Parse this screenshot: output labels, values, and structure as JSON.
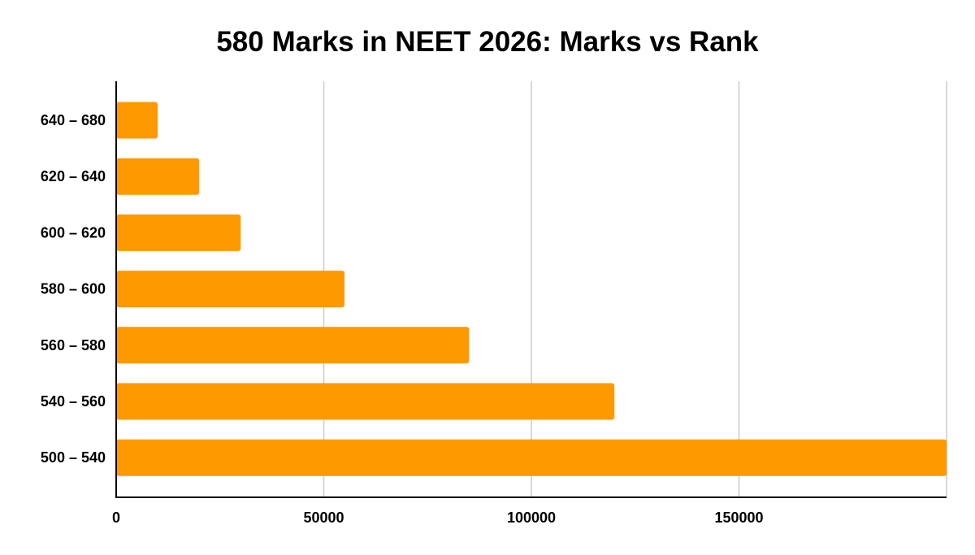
{
  "chart_data": {
    "type": "bar",
    "orientation": "horizontal",
    "title": "580 Marks in NEET 2026: Marks vs Rank",
    "xlabel": "",
    "ylabel": "",
    "categories": [
      "640 – 680",
      "620 – 640",
      "600 – 620",
      "580 – 600",
      "560 – 580",
      "540 – 560",
      "500 – 540"
    ],
    "values": [
      10000,
      20000,
      30000,
      55000,
      85000,
      120000,
      200000
    ],
    "xlim": [
      0,
      200000
    ],
    "xticks": [
      0,
      50000,
      100000,
      150000
    ],
    "xtick_labels": [
      "0",
      "50000",
      "100000",
      "150000"
    ],
    "grid": "vertical",
    "legend": "none",
    "colors": {
      "bar": "#ff9900",
      "grid": "#cccccc",
      "axis": "#000000"
    }
  }
}
